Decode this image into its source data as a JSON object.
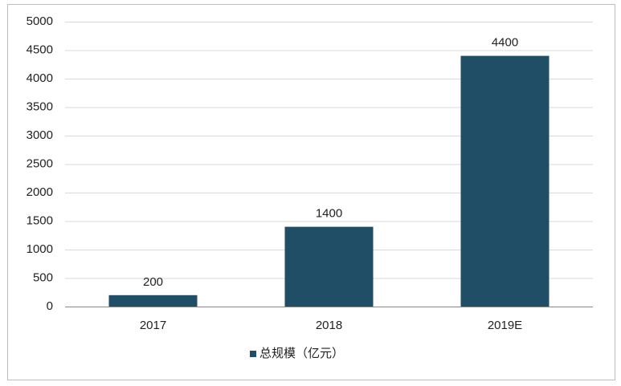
{
  "chart_data": {
    "type": "bar",
    "categories": [
      "2017",
      "2018",
      "2019E"
    ],
    "series": [
      {
        "name": "总规模（亿元）",
        "color": "#1f4e66",
        "values": [
          200,
          1400,
          4400
        ]
      }
    ],
    "ylim": [
      0,
      5000
    ],
    "yticks": [
      0,
      500,
      1000,
      1500,
      2000,
      2500,
      3000,
      3500,
      4000,
      4500,
      5000
    ],
    "grid": true,
    "legend": "bottom",
    "data_labels": true
  }
}
